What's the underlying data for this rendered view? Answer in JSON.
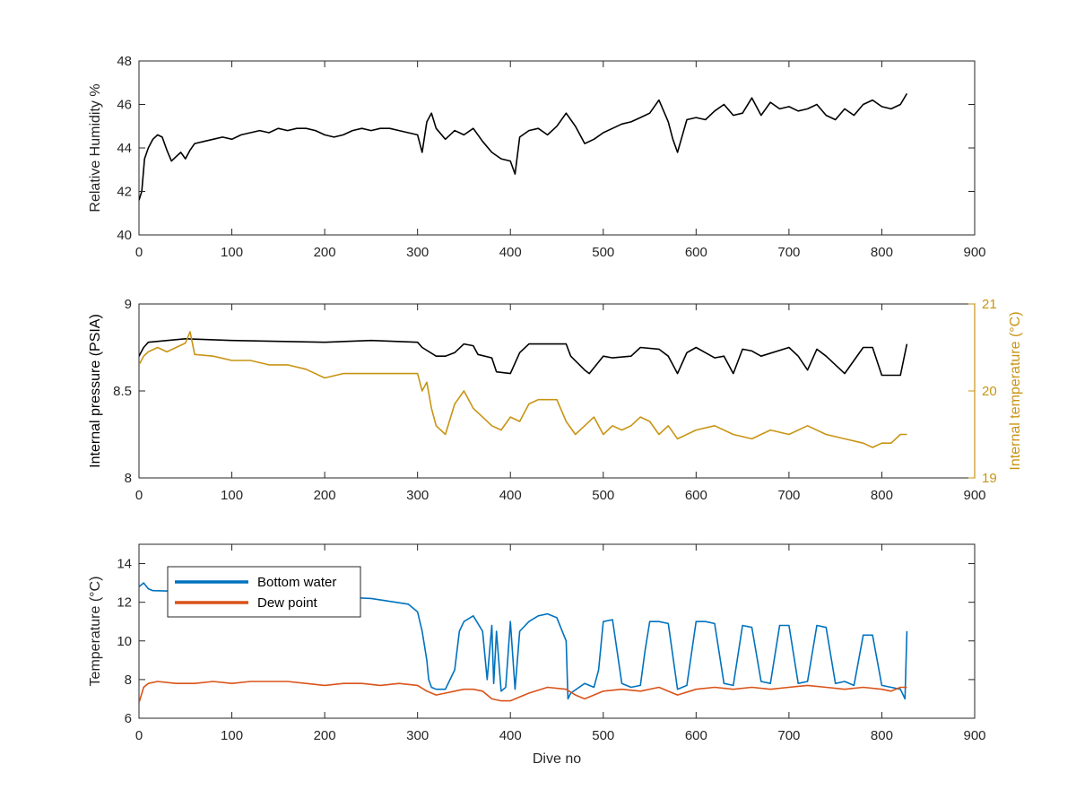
{
  "figure": {
    "background": "#ffffff",
    "axis_color": "#262626"
  },
  "chart_data": [
    {
      "type": "line",
      "title": "",
      "xlabel": "",
      "ylabel": "Relative Humidity %",
      "xlim": [
        0,
        900
      ],
      "ylim": [
        40,
        48
      ],
      "xticks": [
        0,
        100,
        200,
        300,
        400,
        500,
        600,
        700,
        800,
        900
      ],
      "yticks": [
        40,
        42,
        44,
        46,
        48
      ],
      "grid": false,
      "series": [
        {
          "color": "#000000",
          "x": [
            0,
            3,
            6,
            10,
            15,
            20,
            25,
            30,
            35,
            40,
            45,
            50,
            55,
            60,
            70,
            80,
            90,
            100,
            110,
            120,
            130,
            140,
            150,
            160,
            170,
            180,
            190,
            200,
            210,
            220,
            230,
            240,
            250,
            260,
            270,
            280,
            290,
            300,
            305,
            310,
            315,
            320,
            330,
            340,
            350,
            360,
            370,
            380,
            390,
            400,
            405,
            410,
            420,
            430,
            440,
            450,
            460,
            470,
            480,
            490,
            500,
            510,
            520,
            530,
            540,
            550,
            560,
            570,
            575,
            580,
            590,
            600,
            610,
            620,
            630,
            640,
            650,
            660,
            670,
            680,
            690,
            700,
            710,
            720,
            730,
            740,
            750,
            760,
            770,
            780,
            790,
            800,
            810,
            820,
            827
          ],
          "y": [
            41.6,
            42.0,
            43.5,
            44.0,
            44.4,
            44.6,
            44.5,
            43.9,
            43.4,
            43.6,
            43.8,
            43.5,
            43.9,
            44.2,
            44.3,
            44.4,
            44.5,
            44.4,
            44.6,
            44.7,
            44.8,
            44.7,
            44.9,
            44.8,
            44.9,
            44.9,
            44.8,
            44.6,
            44.5,
            44.6,
            44.8,
            44.9,
            44.8,
            44.9,
            44.9,
            44.8,
            44.7,
            44.6,
            43.8,
            45.2,
            45.6,
            44.9,
            44.4,
            44.8,
            44.6,
            44.9,
            44.3,
            43.8,
            43.5,
            43.4,
            42.8,
            44.5,
            44.8,
            44.9,
            44.6,
            45.0,
            45.6,
            45.0,
            44.2,
            44.4,
            44.7,
            44.9,
            45.1,
            45.2,
            45.4,
            45.6,
            46.2,
            45.2,
            44.4,
            43.8,
            45.3,
            45.4,
            45.3,
            45.7,
            46.0,
            45.5,
            45.6,
            46.3,
            45.5,
            46.1,
            45.8,
            45.9,
            45.7,
            45.8,
            46.0,
            45.5,
            45.3,
            45.8,
            45.5,
            46.0,
            46.2,
            45.9,
            45.8,
            46.0,
            46.5
          ]
        }
      ]
    },
    {
      "type": "line",
      "title": "",
      "xlabel": "",
      "ylabel": "Internal pressure (PSIA)",
      "ylabel_right": "Internal temperature (°C)",
      "xlim": [
        0,
        900
      ],
      "ylim": [
        8,
        9
      ],
      "ylim_right": [
        19,
        21
      ],
      "xticks": [
        0,
        100,
        200,
        300,
        400,
        500,
        600,
        700,
        800,
        900
      ],
      "yticks": [
        8,
        8.5,
        9
      ],
      "yticks_right": [
        19,
        20,
        21
      ],
      "grid": false,
      "series": [
        {
          "axis": "left",
          "color": "#000000",
          "x": [
            0,
            5,
            10,
            50,
            100,
            200,
            250,
            300,
            305,
            320,
            330,
            340,
            350,
            360,
            365,
            380,
            385,
            400,
            410,
            420,
            460,
            465,
            480,
            485,
            500,
            510,
            530,
            540,
            560,
            570,
            580,
            590,
            600,
            610,
            620,
            630,
            640,
            650,
            660,
            670,
            700,
            710,
            720,
            730,
            740,
            760,
            780,
            790,
            800,
            810,
            820,
            827
          ],
          "y": [
            8.7,
            8.75,
            8.78,
            8.8,
            8.79,
            8.78,
            8.79,
            8.78,
            8.75,
            8.7,
            8.7,
            8.72,
            8.77,
            8.76,
            8.71,
            8.69,
            8.61,
            8.6,
            8.72,
            8.77,
            8.77,
            8.7,
            8.62,
            8.6,
            8.7,
            8.69,
            8.7,
            8.75,
            8.74,
            8.7,
            8.6,
            8.72,
            8.75,
            8.72,
            8.69,
            8.7,
            8.6,
            8.74,
            8.73,
            8.7,
            8.75,
            8.7,
            8.62,
            8.74,
            8.7,
            8.6,
            8.75,
            8.75,
            8.59,
            8.59,
            8.59,
            8.77
          ]
        },
        {
          "axis": "right",
          "color": "#c89414",
          "x": [
            0,
            5,
            10,
            20,
            30,
            40,
            50,
            55,
            60,
            80,
            100,
            120,
            140,
            160,
            180,
            200,
            220,
            240,
            260,
            280,
            290,
            300,
            305,
            310,
            315,
            320,
            330,
            340,
            350,
            360,
            370,
            380,
            390,
            400,
            410,
            420,
            430,
            440,
            450,
            460,
            470,
            480,
            490,
            500,
            510,
            520,
            530,
            540,
            550,
            560,
            570,
            580,
            600,
            620,
            640,
            660,
            680,
            700,
            720,
            740,
            760,
            780,
            790,
            800,
            810,
            820,
            827
          ],
          "y": [
            20.3,
            20.4,
            20.45,
            20.5,
            20.45,
            20.5,
            20.55,
            20.68,
            20.42,
            20.4,
            20.35,
            20.35,
            20.3,
            20.3,
            20.25,
            20.15,
            20.2,
            20.2,
            20.2,
            20.2,
            20.2,
            20.2,
            20.0,
            20.1,
            19.8,
            19.6,
            19.5,
            19.85,
            20.0,
            19.8,
            19.7,
            19.6,
            19.55,
            19.7,
            19.65,
            19.85,
            19.9,
            19.9,
            19.9,
            19.65,
            19.5,
            19.6,
            19.7,
            19.5,
            19.6,
            19.55,
            19.6,
            19.7,
            19.65,
            19.5,
            19.6,
            19.45,
            19.55,
            19.6,
            19.5,
            19.45,
            19.55,
            19.5,
            19.6,
            19.5,
            19.45,
            19.4,
            19.35,
            19.4,
            19.4,
            19.5,
            19.5
          ]
        }
      ]
    },
    {
      "type": "line",
      "title": "",
      "xlabel": "Dive no",
      "ylabel": "Temperature (°C)",
      "xlim": [
        0,
        900
      ],
      "ylim": [
        6,
        15
      ],
      "xticks": [
        0,
        100,
        200,
        300,
        400,
        500,
        600,
        700,
        800,
        900
      ],
      "yticks": [
        6,
        8,
        10,
        12,
        14
      ],
      "grid": false,
      "legend": "top-left",
      "series": [
        {
          "name": "Bottom water",
          "color": "#0072bd",
          "x": [
            0,
            5,
            10,
            15,
            100,
            150,
            200,
            250,
            290,
            300,
            305,
            310,
            312,
            315,
            320,
            330,
            340,
            345,
            350,
            360,
            370,
            375,
            380,
            382,
            385,
            390,
            395,
            400,
            405,
            410,
            420,
            430,
            440,
            450,
            460,
            462,
            465,
            480,
            490,
            495,
            500,
            510,
            520,
            530,
            540,
            545,
            550,
            560,
            570,
            580,
            590,
            600,
            610,
            620,
            630,
            640,
            650,
            660,
            670,
            680,
            690,
            700,
            710,
            720,
            730,
            740,
            750,
            760,
            770,
            780,
            790,
            800,
            810,
            820,
            825,
            827
          ],
          "y": [
            12.8,
            13.0,
            12.7,
            12.6,
            12.5,
            12.4,
            12.3,
            12.2,
            11.9,
            11.5,
            10.5,
            9.0,
            8.0,
            7.6,
            7.5,
            7.5,
            8.5,
            10.5,
            11.0,
            11.3,
            10.5,
            8.0,
            10.8,
            7.8,
            10.5,
            7.4,
            7.6,
            11.0,
            7.5,
            10.5,
            11.0,
            11.3,
            11.4,
            11.2,
            10.0,
            7.0,
            7.3,
            7.8,
            7.6,
            8.5,
            11.0,
            11.1,
            7.8,
            7.6,
            7.7,
            9.5,
            11.0,
            11.0,
            10.9,
            7.5,
            7.7,
            11.0,
            11.0,
            10.9,
            7.8,
            7.7,
            10.8,
            10.7,
            7.9,
            7.8,
            10.8,
            10.8,
            7.8,
            7.9,
            10.8,
            10.7,
            7.8,
            7.9,
            7.7,
            10.3,
            10.3,
            7.7,
            7.6,
            7.5,
            7.0,
            10.5
          ]
        },
        {
          "name": "Dew point",
          "color": "#d95319",
          "x": [
            0,
            5,
            10,
            20,
            40,
            60,
            80,
            100,
            120,
            140,
            160,
            180,
            200,
            220,
            240,
            260,
            280,
            300,
            310,
            320,
            330,
            340,
            350,
            360,
            370,
            380,
            390,
            400,
            410,
            420,
            440,
            460,
            470,
            480,
            490,
            500,
            520,
            540,
            560,
            580,
            600,
            620,
            640,
            660,
            680,
            700,
            720,
            740,
            760,
            780,
            800,
            810,
            820,
            827
          ],
          "y": [
            6.8,
            7.6,
            7.8,
            7.9,
            7.8,
            7.8,
            7.9,
            7.8,
            7.9,
            7.9,
            7.9,
            7.8,
            7.7,
            7.8,
            7.8,
            7.7,
            7.8,
            7.7,
            7.4,
            7.2,
            7.3,
            7.4,
            7.5,
            7.5,
            7.4,
            7.0,
            6.9,
            6.9,
            7.1,
            7.3,
            7.6,
            7.5,
            7.2,
            7.0,
            7.2,
            7.4,
            7.5,
            7.4,
            7.6,
            7.2,
            7.5,
            7.6,
            7.5,
            7.6,
            7.5,
            7.6,
            7.7,
            7.6,
            7.5,
            7.6,
            7.5,
            7.4,
            7.6,
            7.6
          ]
        }
      ]
    }
  ]
}
